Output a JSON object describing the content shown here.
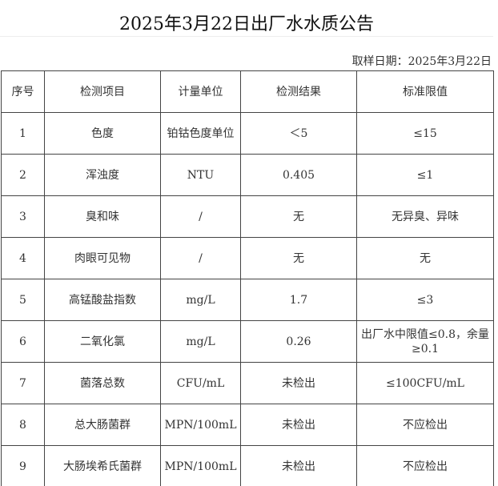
{
  "title": "2025年3月22日出厂水水质公告",
  "sample_date": "取样日期：2025年3月22日",
  "headers": [
    "序号",
    "检测项目",
    "计量单位",
    "检测结果",
    "标准限值"
  ],
  "rows": [
    [
      "1",
      "色度",
      "铂钴色度单位",
      "＜5",
      "≤15"
    ],
    [
      "2",
      "浑浊度",
      "NTU",
      "0.405",
      "≤1"
    ],
    [
      "3",
      "臭和味",
      "/",
      "无",
      "无异臭、异味"
    ],
    [
      "4",
      "肉眼可见物",
      "/",
      "无",
      "无"
    ],
    [
      "5",
      "高锰酸盐指数",
      "mg/L",
      "1.7",
      "≤3"
    ],
    [
      "6",
      "二氧化氯",
      "mg/L",
      "0.26",
      "出厂水中限值≤0.8，余量≥0.1"
    ],
    [
      "7",
      "菌落总数",
      "CFU/mL",
      "未检出",
      "≤100CFU/mL"
    ],
    [
      "8",
      "总大肠菌群",
      "MPN/100mL",
      "未检出",
      "不应检出"
    ],
    [
      "9",
      "大肠埃希氏菌群",
      "MPN/100mL",
      "未检出",
      "不应检出"
    ]
  ]
}
